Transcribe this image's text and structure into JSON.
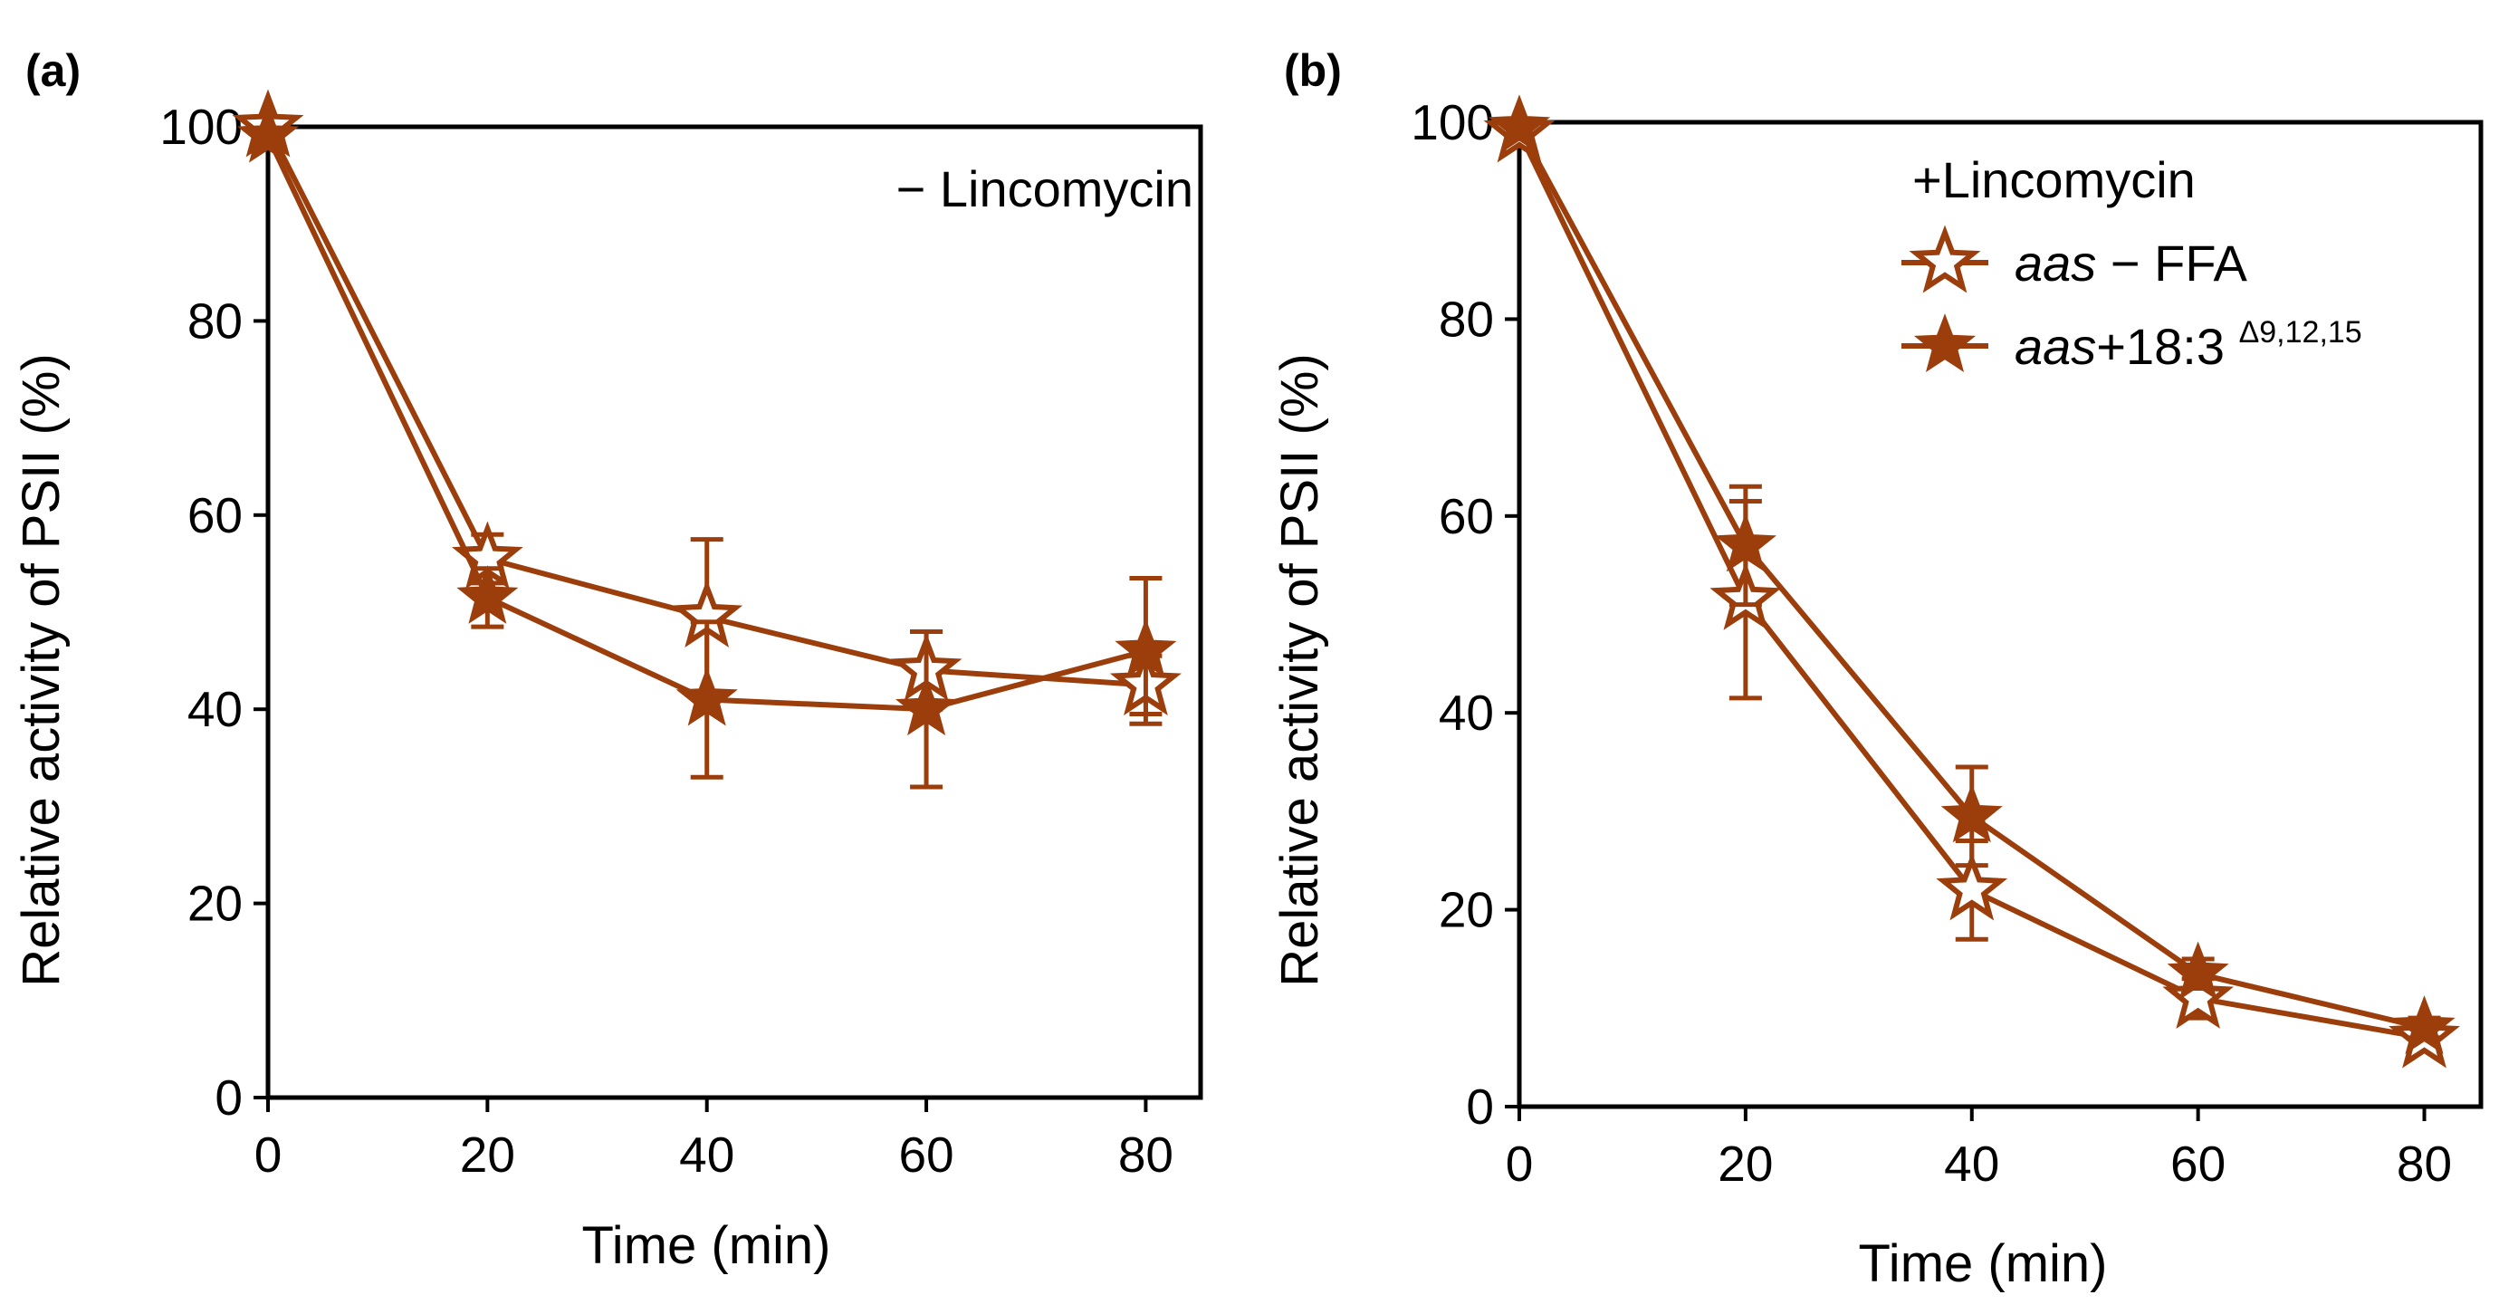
{
  "colors": {
    "series": "#9b3e0c",
    "axis": "#000000",
    "background": "#ffffff"
  },
  "chart_data": [
    {
      "type": "line",
      "panel_label": "(a)",
      "xlabel": "Time (min)",
      "ylabel": "Relative activity of PSII (%)",
      "xlim": [
        0,
        85
      ],
      "ylim": [
        0,
        100
      ],
      "xticks": [
        0,
        20,
        40,
        60,
        80
      ],
      "yticks": [
        0,
        20,
        40,
        60,
        80,
        100
      ],
      "grid": false,
      "legend_title": "− Lincomycin",
      "legend_position": "top-right",
      "series": [
        {
          "name": "aas − FFA",
          "marker": "open-star",
          "x": [
            0,
            20,
            40,
            60,
            80
          ],
          "y": [
            100,
            55.5,
            49.5,
            44,
            42.5
          ],
          "err": [
            0,
            2.5,
            8,
            4,
            3
          ]
        },
        {
          "name": "aas+18:3 Δ9,12,15",
          "marker": "filled-star",
          "x": [
            0,
            20,
            40,
            60,
            80
          ],
          "y": [
            99,
            51.5,
            41,
            40,
            46
          ],
          "err": [
            0,
            3,
            8,
            8,
            7.5
          ]
        }
      ]
    },
    {
      "type": "line",
      "panel_label": "(b)",
      "xlabel": "Time (min)",
      "ylabel": "Relative activity of PSII (%)",
      "xlim": [
        0,
        85
      ],
      "ylim": [
        0,
        100
      ],
      "xticks": [
        0,
        20,
        40,
        60,
        80
      ],
      "yticks": [
        0,
        20,
        40,
        60,
        80,
        100
      ],
      "grid": false,
      "legend_title": "+Lincomycin",
      "legend_position": "top-right",
      "legend_entries": [
        {
          "italic": "aas",
          "text": " − FFA",
          "sup": "",
          "marker": "open-star"
        },
        {
          "italic": "aas",
          "text": "+18:3 ",
          "sup": "Δ9,12,15",
          "marker": "filled-star"
        }
      ],
      "series": [
        {
          "name": "aas − FFA",
          "marker": "open-star",
          "x": [
            0,
            20,
            40,
            60,
            80
          ],
          "y": [
            99,
            51.5,
            22,
            11,
            7
          ],
          "err": [
            0,
            10,
            5,
            2,
            1
          ]
        },
        {
          "name": "aas+18:3 Δ9,12,15",
          "marker": "filled-star",
          "x": [
            0,
            20,
            40,
            60,
            80
          ],
          "y": [
            99.5,
            57,
            29.5,
            13.5,
            8
          ],
          "err": [
            0,
            6,
            5,
            1.5,
            1
          ]
        }
      ]
    }
  ]
}
